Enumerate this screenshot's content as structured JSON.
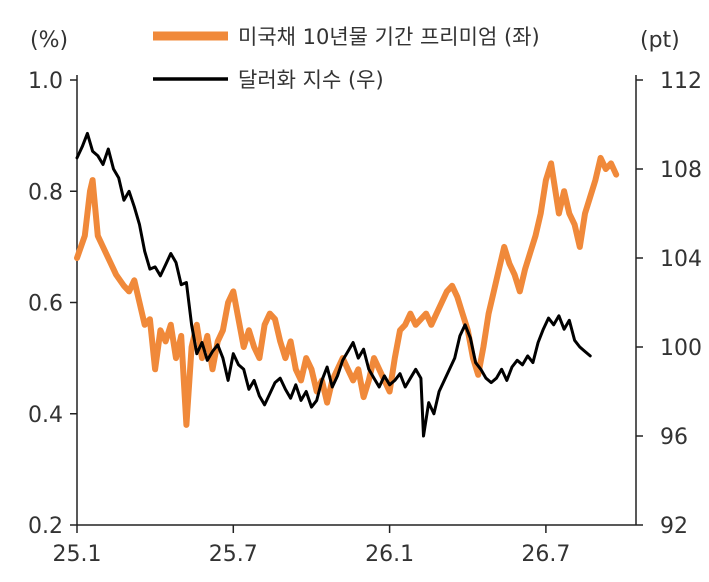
{
  "chart_data": {
    "type": "line",
    "title": "",
    "y_left_unit": "(%)",
    "y_right_unit": "(pt)",
    "y_left_ticks": [
      "0.2",
      "0.4",
      "0.6",
      "0.8",
      "1.0"
    ],
    "y_right_ticks": [
      "92",
      "96",
      "100",
      "104",
      "108",
      "112"
    ],
    "x_ticks": [
      "25.1",
      "25.7",
      "26.1",
      "26.7"
    ],
    "x_range_months": [
      0,
      20
    ],
    "y_left_range": [
      0.2,
      1.0
    ],
    "y_right_range": [
      92,
      112
    ],
    "legend_position": "top",
    "grid": false,
    "series": [
      {
        "name": "미국채 10년물 기간 프리미엄 (좌)",
        "axis": "left",
        "color": "#F0893A",
        "points": [
          [
            0.0,
            0.68
          ],
          [
            0.3,
            0.72
          ],
          [
            0.5,
            0.8
          ],
          [
            0.6,
            0.82
          ],
          [
            0.8,
            0.72
          ],
          [
            1.0,
            0.7
          ],
          [
            1.3,
            0.67
          ],
          [
            1.5,
            0.65
          ],
          [
            1.8,
            0.63
          ],
          [
            2.0,
            0.62
          ],
          [
            2.2,
            0.64
          ],
          [
            2.4,
            0.6
          ],
          [
            2.6,
            0.56
          ],
          [
            2.8,
            0.57
          ],
          [
            3.0,
            0.48
          ],
          [
            3.2,
            0.55
          ],
          [
            3.4,
            0.53
          ],
          [
            3.6,
            0.56
          ],
          [
            3.8,
            0.5
          ],
          [
            4.0,
            0.54
          ],
          [
            4.1,
            0.46
          ],
          [
            4.2,
            0.38
          ],
          [
            4.4,
            0.52
          ],
          [
            4.6,
            0.56
          ],
          [
            4.8,
            0.5
          ],
          [
            5.0,
            0.54
          ],
          [
            5.2,
            0.48
          ],
          [
            5.4,
            0.53
          ],
          [
            5.6,
            0.55
          ],
          [
            5.8,
            0.6
          ],
          [
            6.0,
            0.62
          ],
          [
            6.2,
            0.57
          ],
          [
            6.4,
            0.52
          ],
          [
            6.6,
            0.55
          ],
          [
            6.8,
            0.52
          ],
          [
            7.0,
            0.5
          ],
          [
            7.2,
            0.56
          ],
          [
            7.4,
            0.58
          ],
          [
            7.6,
            0.57
          ],
          [
            7.8,
            0.53
          ],
          [
            8.0,
            0.5
          ],
          [
            8.2,
            0.53
          ],
          [
            8.4,
            0.48
          ],
          [
            8.6,
            0.46
          ],
          [
            8.8,
            0.5
          ],
          [
            9.0,
            0.48
          ],
          [
            9.2,
            0.44
          ],
          [
            9.4,
            0.46
          ],
          [
            9.6,
            0.42
          ],
          [
            9.8,
            0.46
          ],
          [
            10.0,
            0.48
          ],
          [
            10.2,
            0.5
          ],
          [
            10.4,
            0.48
          ],
          [
            10.6,
            0.46
          ],
          [
            10.8,
            0.48
          ],
          [
            11.0,
            0.43
          ],
          [
            11.2,
            0.46
          ],
          [
            11.4,
            0.5
          ],
          [
            11.6,
            0.48
          ],
          [
            11.8,
            0.46
          ],
          [
            12.0,
            0.44
          ],
          [
            12.2,
            0.5
          ],
          [
            12.4,
            0.55
          ],
          [
            12.6,
            0.56
          ],
          [
            12.8,
            0.58
          ],
          [
            13.0,
            0.56
          ],
          [
            13.2,
            0.57
          ],
          [
            13.4,
            0.58
          ],
          [
            13.6,
            0.56
          ],
          [
            13.8,
            0.58
          ],
          [
            14.0,
            0.6
          ],
          [
            14.2,
            0.62
          ],
          [
            14.4,
            0.63
          ],
          [
            14.6,
            0.61
          ],
          [
            14.8,
            0.58
          ],
          [
            15.0,
            0.55
          ],
          [
            15.2,
            0.5
          ],
          [
            15.4,
            0.47
          ],
          [
            15.6,
            0.52
          ],
          [
            15.8,
            0.58
          ],
          [
            16.0,
            0.62
          ],
          [
            16.2,
            0.66
          ],
          [
            16.4,
            0.7
          ],
          [
            16.6,
            0.67
          ],
          [
            16.8,
            0.65
          ],
          [
            17.0,
            0.62
          ],
          [
            17.2,
            0.66
          ],
          [
            17.4,
            0.69
          ],
          [
            17.6,
            0.72
          ],
          [
            17.8,
            0.76
          ],
          [
            18.0,
            0.82
          ],
          [
            18.2,
            0.85
          ],
          [
            18.3,
            0.82
          ],
          [
            18.5,
            0.76
          ],
          [
            18.7,
            0.8
          ],
          [
            18.9,
            0.76
          ],
          [
            19.1,
            0.74
          ],
          [
            19.3,
            0.7
          ],
          [
            19.5,
            0.76
          ],
          [
            19.7,
            0.79
          ],
          [
            19.9,
            0.82
          ],
          [
            20.1,
            0.86
          ],
          [
            20.3,
            0.84
          ],
          [
            20.5,
            0.85
          ],
          [
            20.7,
            0.83
          ]
        ]
      },
      {
        "name": "달러화 지수 (우)",
        "axis": "right",
        "color": "#000000",
        "points": [
          [
            0.0,
            108.5
          ],
          [
            0.2,
            109.0
          ],
          [
            0.4,
            109.6
          ],
          [
            0.6,
            108.8
          ],
          [
            0.8,
            108.6
          ],
          [
            1.0,
            108.2
          ],
          [
            1.2,
            108.9
          ],
          [
            1.4,
            108.0
          ],
          [
            1.6,
            107.6
          ],
          [
            1.8,
            106.6
          ],
          [
            2.0,
            107.0
          ],
          [
            2.2,
            106.3
          ],
          [
            2.4,
            105.5
          ],
          [
            2.6,
            104.3
          ],
          [
            2.8,
            103.5
          ],
          [
            3.0,
            103.6
          ],
          [
            3.2,
            103.2
          ],
          [
            3.4,
            103.7
          ],
          [
            3.6,
            104.2
          ],
          [
            3.8,
            103.8
          ],
          [
            4.0,
            102.8
          ],
          [
            4.2,
            102.9
          ],
          [
            4.4,
            101.0
          ],
          [
            4.6,
            99.7
          ],
          [
            4.8,
            100.2
          ],
          [
            5.0,
            99.4
          ],
          [
            5.2,
            99.8
          ],
          [
            5.4,
            100.1
          ],
          [
            5.6,
            99.5
          ],
          [
            5.8,
            98.5
          ],
          [
            6.0,
            99.7
          ],
          [
            6.2,
            99.2
          ],
          [
            6.4,
            99.0
          ],
          [
            6.6,
            98.1
          ],
          [
            6.8,
            98.5
          ],
          [
            7.0,
            97.8
          ],
          [
            7.2,
            97.4
          ],
          [
            7.4,
            97.9
          ],
          [
            7.6,
            98.4
          ],
          [
            7.8,
            98.6
          ],
          [
            8.0,
            98.1
          ],
          [
            8.2,
            97.7
          ],
          [
            8.4,
            98.3
          ],
          [
            8.6,
            97.6
          ],
          [
            8.8,
            98.0
          ],
          [
            9.0,
            97.3
          ],
          [
            9.2,
            97.6
          ],
          [
            9.4,
            98.5
          ],
          [
            9.6,
            99.1
          ],
          [
            9.8,
            98.2
          ],
          [
            10.0,
            98.7
          ],
          [
            10.2,
            99.4
          ],
          [
            10.4,
            99.8
          ],
          [
            10.6,
            100.2
          ],
          [
            10.8,
            99.5
          ],
          [
            11.0,
            99.9
          ],
          [
            11.2,
            99.0
          ],
          [
            11.4,
            98.6
          ],
          [
            11.6,
            98.2
          ],
          [
            11.8,
            98.7
          ],
          [
            12.0,
            98.3
          ],
          [
            12.2,
            98.5
          ],
          [
            12.4,
            98.8
          ],
          [
            12.6,
            98.2
          ],
          [
            12.8,
            98.6
          ],
          [
            13.0,
            99.0
          ],
          [
            13.2,
            98.6
          ],
          [
            13.3,
            96.0
          ],
          [
            13.5,
            97.5
          ],
          [
            13.7,
            97.0
          ],
          [
            13.9,
            98.0
          ],
          [
            14.1,
            98.5
          ],
          [
            14.3,
            99.0
          ],
          [
            14.5,
            99.5
          ],
          [
            14.7,
            100.5
          ],
          [
            14.9,
            101.0
          ],
          [
            15.1,
            100.4
          ],
          [
            15.3,
            99.3
          ],
          [
            15.5,
            99.0
          ],
          [
            15.7,
            98.6
          ],
          [
            15.9,
            98.4
          ],
          [
            16.1,
            98.6
          ],
          [
            16.3,
            99.0
          ],
          [
            16.5,
            98.5
          ],
          [
            16.7,
            99.1
          ],
          [
            16.9,
            99.4
          ],
          [
            17.1,
            99.2
          ],
          [
            17.3,
            99.6
          ],
          [
            17.5,
            99.3
          ],
          [
            17.7,
            100.2
          ],
          [
            17.9,
            100.8
          ],
          [
            18.1,
            101.3
          ],
          [
            18.3,
            101.0
          ],
          [
            18.5,
            101.4
          ],
          [
            18.7,
            100.8
          ],
          [
            18.9,
            101.2
          ],
          [
            19.1,
            100.3
          ],
          [
            19.3,
            100.0
          ],
          [
            19.5,
            99.8
          ],
          [
            19.7,
            99.6
          ]
        ]
      }
    ]
  }
}
